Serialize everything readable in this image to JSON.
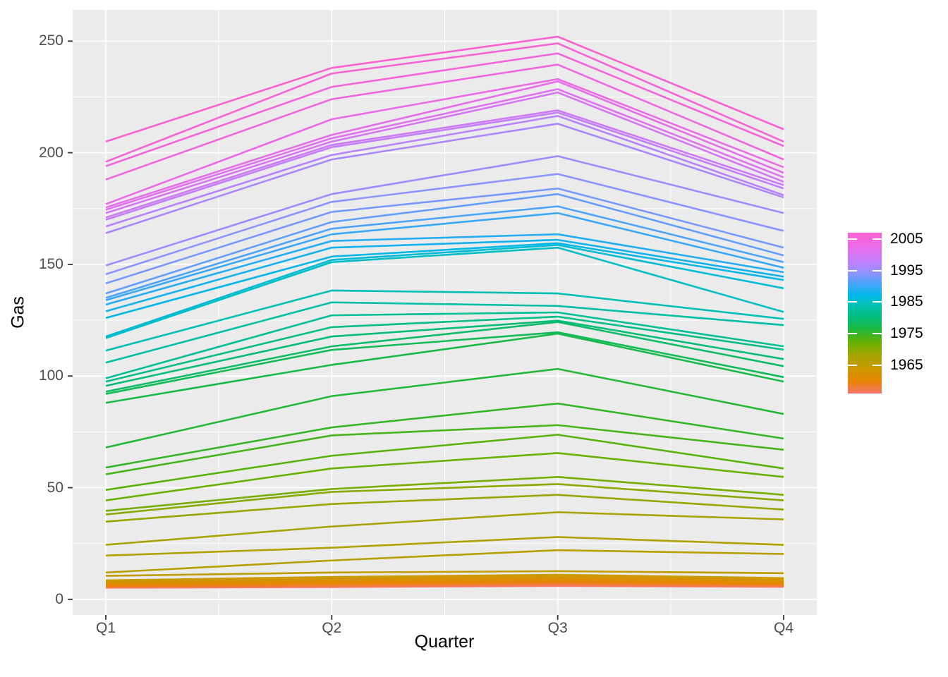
{
  "figure": {
    "background": "#FFFFFF",
    "panel_bg": "#EBEBEB",
    "grid_color": "#FFFFFF",
    "axis_text_color": "#4D4D4D",
    "axis_title_color": "#000000",
    "tick_mark_color": "#333333"
  },
  "chart_data": {
    "type": "line",
    "title": "",
    "xlabel": "Quarter",
    "ylabel": "Gas",
    "x_categories": [
      "Q1",
      "Q2",
      "Q3",
      "Q4"
    ],
    "y_ticks": [
      0,
      50,
      100,
      150,
      200,
      250
    ],
    "y_minor_ticks": [
      25,
      75,
      125,
      175,
      225
    ],
    "y_range_shown": [
      -7,
      264
    ],
    "grid": true,
    "legend_position": "right",
    "legend": {
      "tick_years": [
        2005,
        1995,
        1985,
        1975,
        1965
      ],
      "labels": [
        "2005",
        "1995",
        "1985",
        "1975",
        "1965"
      ]
    },
    "color_scale": {
      "domain": [
        1956,
        2007
      ],
      "stops": [
        {
          "t": 0.0,
          "color": "#F8766D"
        },
        {
          "t": 0.08,
          "color": "#E98500"
        },
        {
          "t": 0.16,
          "color": "#C99A00"
        },
        {
          "t": 0.24,
          "color": "#A3A500"
        },
        {
          "t": 0.32,
          "color": "#64B100"
        },
        {
          "t": 0.4,
          "color": "#1CB93E"
        },
        {
          "t": 0.48,
          "color": "#00BE7E"
        },
        {
          "t": 0.56,
          "color": "#00C0BB"
        },
        {
          "t": 0.61,
          "color": "#00B7EA"
        },
        {
          "t": 0.67,
          "color": "#3AA7FA"
        },
        {
          "t": 0.74,
          "color": "#8795FF"
        },
        {
          "t": 0.81,
          "color": "#BC81FE"
        },
        {
          "t": 0.88,
          "color": "#DF73F2"
        },
        {
          "t": 0.94,
          "color": "#F166E0"
        },
        {
          "t": 1.0,
          "color": "#FC61CF"
        }
      ]
    },
    "series": [
      {
        "year": 1956,
        "values": [
          5.2,
          5.5,
          6.0,
          5.6
        ]
      },
      {
        "year": 1957,
        "values": [
          5.4,
          5.8,
          6.4,
          5.9
        ]
      },
      {
        "year": 1958,
        "values": [
          5.6,
          6.2,
          6.9,
          6.2
        ]
      },
      {
        "year": 1959,
        "values": [
          5.9,
          6.6,
          7.4,
          6.6
        ]
      },
      {
        "year": 1960,
        "values": [
          6.3,
          7.2,
          8.0,
          7.0
        ]
      },
      {
        "year": 1961,
        "values": [
          6.7,
          7.8,
          8.7,
          7.6
        ]
      },
      {
        "year": 1962,
        "values": [
          7.2,
          8.5,
          9.4,
          8.2
        ]
      },
      {
        "year": 1963,
        "values": [
          7.8,
          9.2,
          10.2,
          8.8
        ]
      },
      {
        "year": 1964,
        "values": [
          8.5,
          10.0,
          11.0,
          9.5
        ]
      },
      {
        "year": 1965,
        "values": [
          10.5,
          12.0,
          12.6,
          11.7
        ]
      },
      {
        "year": 1966,
        "values": [
          12.0,
          17.4,
          22.0,
          20.3
        ]
      },
      {
        "year": 1967,
        "values": [
          19.6,
          23.1,
          27.9,
          24.4
        ]
      },
      {
        "year": 1968,
        "values": [
          24.4,
          32.6,
          39.0,
          35.8
        ]
      },
      {
        "year": 1969,
        "values": [
          34.8,
          42.7,
          46.8,
          40.2
        ]
      },
      {
        "year": 1970,
        "values": [
          38.0,
          48.1,
          51.6,
          44.3
        ]
      },
      {
        "year": 1971,
        "values": [
          39.6,
          49.4,
          54.8,
          46.8
        ]
      },
      {
        "year": 1972,
        "values": [
          44.3,
          58.6,
          65.5,
          54.8
        ]
      },
      {
        "year": 1973,
        "values": [
          49.0,
          64.3,
          73.7,
          58.6
        ]
      },
      {
        "year": 1974,
        "values": [
          56.0,
          73.4,
          78.0,
          67.0
        ]
      },
      {
        "year": 1975,
        "values": [
          59.0,
          77.0,
          87.7,
          72.0
        ]
      },
      {
        "year": 1976,
        "values": [
          68.0,
          91.0,
          103.2,
          83.0
        ]
      },
      {
        "year": 1977,
        "values": [
          88.0,
          105.0,
          119.0,
          97.5
        ]
      },
      {
        "year": 1978,
        "values": [
          92.0,
          111.7,
          119.6,
          99.5
        ]
      },
      {
        "year": 1979,
        "values": [
          93.0,
          113.3,
          124.2,
          104.4
        ]
      },
      {
        "year": 1980,
        "values": [
          95.6,
          117.7,
          124.8,
          107.6
        ]
      },
      {
        "year": 1981,
        "values": [
          97.5,
          121.9,
          126.6,
          111.8
        ]
      },
      {
        "year": 1982,
        "values": [
          99.0,
          127.2,
          128.5,
          113.3
        ]
      },
      {
        "year": 1983,
        "values": [
          106.0,
          133.0,
          131.4,
          122.8
        ]
      },
      {
        "year": 1984,
        "values": [
          111.4,
          138.3,
          137.0,
          125.6
        ]
      },
      {
        "year": 1985,
        "values": [
          117.0,
          151.0,
          157.5,
          128.7
        ]
      },
      {
        "year": 1986,
        "values": [
          117.7,
          152.0,
          158.7,
          139.3
        ]
      },
      {
        "year": 1987,
        "values": [
          126.0,
          153.5,
          159.5,
          143.0
        ]
      },
      {
        "year": 1988,
        "values": [
          129.0,
          157.5,
          161.0,
          144.5
        ]
      },
      {
        "year": 1989,
        "values": [
          132.0,
          160.5,
          163.5,
          146.5
        ]
      },
      {
        "year": 1990,
        "values": [
          134.0,
          163.5,
          173.0,
          148.5
        ]
      },
      {
        "year": 1991,
        "values": [
          135.0,
          166.0,
          176.0,
          151.0
        ]
      },
      {
        "year": 1992,
        "values": [
          137.0,
          169.0,
          181.5,
          154.0
        ]
      },
      {
        "year": 1993,
        "values": [
          141.5,
          173.5,
          184.0,
          157.5
        ]
      },
      {
        "year": 1994,
        "values": [
          145.6,
          178.0,
          190.5,
          165.0
        ]
      },
      {
        "year": 1995,
        "values": [
          149.5,
          181.5,
          198.5,
          173.0
        ]
      },
      {
        "year": 1996,
        "values": [
          164.0,
          197.0,
          213.0,
          180.0
        ]
      },
      {
        "year": 1997,
        "values": [
          167.0,
          199.0,
          216.5,
          181.0
        ]
      },
      {
        "year": 1998,
        "values": [
          170.0,
          202.5,
          218.0,
          184.0
        ]
      },
      {
        "year": 1999,
        "values": [
          171.0,
          203.5,
          219.0,
          185.5
        ]
      },
      {
        "year": 2000,
        "values": [
          173.0,
          205.0,
          227.0,
          187.0
        ]
      },
      {
        "year": 2001,
        "values": [
          174.5,
          206.5,
          228.5,
          189.0
        ]
      },
      {
        "year": 2002,
        "values": [
          175.5,
          208.0,
          232.0,
          191.0
        ]
      },
      {
        "year": 2003,
        "values": [
          177.0,
          215.0,
          233.0,
          193.5
        ]
      },
      {
        "year": 2004,
        "values": [
          188.0,
          224.0,
          239.5,
          197.0
        ]
      },
      {
        "year": 2005,
        "values": [
          194.0,
          229.5,
          244.5,
          203.0
        ]
      },
      {
        "year": 2006,
        "values": [
          196.0,
          235.5,
          249.0,
          205.0
        ]
      },
      {
        "year": 2007,
        "values": [
          205.0,
          238.0,
          252.0,
          210.5
        ]
      }
    ]
  }
}
